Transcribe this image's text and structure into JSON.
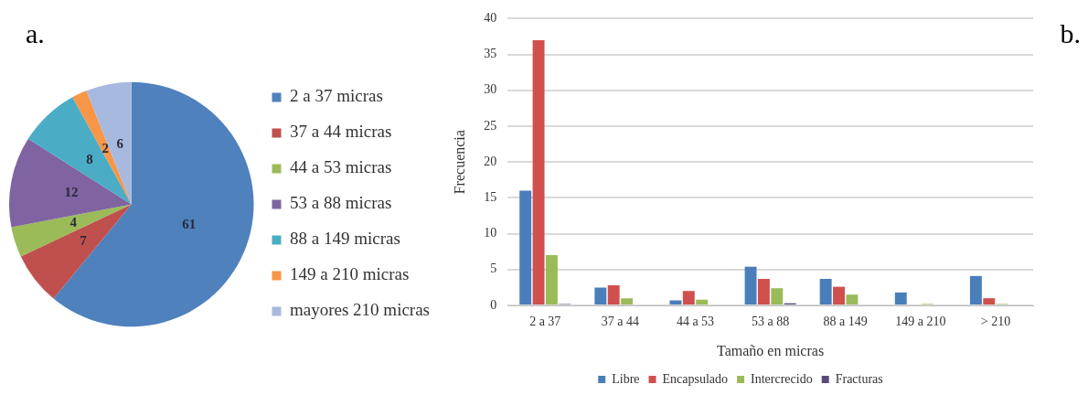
{
  "chart_data": [
    {
      "type": "pie",
      "annotations": [
        "a."
      ],
      "categories": [
        "2 a 37 micras",
        "37 a 44 micras",
        "44 a 53 micras",
        "53 a 88 micras",
        "88 a 149 micras",
        "149 a 210 micras",
        "mayores 210 micras"
      ],
      "values": [
        61,
        7,
        4,
        12,
        8,
        2,
        6
      ],
      "colors": [
        "#4f81bd",
        "#c0504d",
        "#9bbb59",
        "#8064a2",
        "#4bacc6",
        "#f79646",
        "#a7b9de"
      ],
      "data_labels": true,
      "legend": "right"
    },
    {
      "type": "bar",
      "annotations": [
        "b."
      ],
      "xlabel": "Tamaño en micras",
      "ylabel": "Frecuencia",
      "categories": [
        "2 a 37",
        "37 a 44",
        "44 a 53",
        "53 a 88",
        "88 a 149",
        "149 a 210",
        "> 210"
      ],
      "series": [
        {
          "name": "Libre",
          "color": "#4a7ebb",
          "values": [
            16,
            2.5,
            0.7,
            5.4,
            3.7,
            1.8,
            4.1
          ]
        },
        {
          "name": "Encapsulado",
          "color": "#d0504d",
          "values": [
            37,
            2.8,
            2,
            3.7,
            2.6,
            0,
            1
          ]
        },
        {
          "name": "Intercrecido",
          "color": "#9bbb59",
          "values": [
            7,
            1,
            0.8,
            2.4,
            1.5,
            0.2,
            0.2
          ]
        },
        {
          "name": "Fracturas",
          "color": "#5a4a7a",
          "values": [
            0.2,
            0,
            0,
            0.3,
            0,
            0,
            0
          ]
        }
      ],
      "ylim": [
        0,
        40
      ],
      "yticks": [
        0,
        5,
        10,
        15,
        20,
        25,
        30,
        35,
        40
      ],
      "grid": "y",
      "legend": "bottom"
    }
  ]
}
